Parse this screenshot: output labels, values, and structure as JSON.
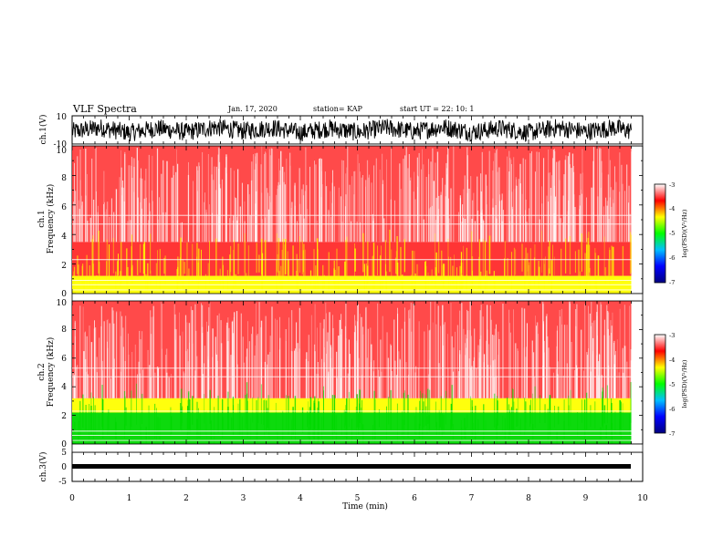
{
  "header": {
    "title": "VLF Spectra",
    "date": "Jan. 17, 2020",
    "station": "station= KAP",
    "start": "start UT =   22: 10: 1"
  },
  "colors": {
    "background": "#ffffff",
    "waveform": "#000000",
    "spectrogram_high": "#ff2a2a",
    "spectrogram_mid": "#ffff00",
    "spectrogram_low": "#00d800",
    "colorbar": [
      "#000080",
      "#0000ff",
      "#00c0ff",
      "#00ff00",
      "#ffff00",
      "#ff0000",
      "#ffffff"
    ]
  },
  "chart_data": [
    {
      "type": "line",
      "panel": "ch1-waveform",
      "ylabel": "ch.1(V)",
      "ylim": [
        -10,
        10
      ],
      "yticks": [
        "10",
        "-10"
      ],
      "xlim": [
        0,
        10
      ],
      "x": [
        0,
        0.5,
        1,
        1.5,
        2,
        2.5,
        3,
        3.5,
        4,
        4.5,
        5,
        5.5,
        6,
        6.5,
        7,
        7.5,
        8,
        8.5,
        9,
        9.5,
        9.8
      ],
      "series": [
        {
          "values": [
            -3,
            4,
            -5,
            3,
            -4,
            5,
            -2,
            4,
            -5,
            3,
            -4,
            4,
            -3,
            5,
            -4,
            3,
            -5,
            4,
            -3,
            4,
            -2
          ]
        }
      ],
      "envelope_v": [
        -8,
        8
      ]
    },
    {
      "type": "heatmap",
      "panel": "ch1-spectrogram",
      "ylabel_lines": [
        "ch.1",
        "Frequency (kHz)"
      ],
      "ylim": [
        0,
        10
      ],
      "yticks": [
        "0",
        "2",
        "4",
        "6",
        "8",
        "10"
      ],
      "xlim": [
        0,
        10
      ],
      "colorbar": {
        "label": "log(PSD)(V²/Hz)",
        "range": [
          -7,
          -3
        ],
        "ticks": [
          "-3",
          "-4",
          "-5",
          "-6",
          "-7"
        ]
      },
      "bands_khz": [
        {
          "from": 0,
          "to": 1.2,
          "level": "mid"
        },
        {
          "from": 1.2,
          "to": 3.5,
          "level": "mid-high"
        },
        {
          "from": 3.5,
          "to": 10,
          "level": "high"
        }
      ]
    },
    {
      "type": "heatmap",
      "panel": "ch2-spectrogram",
      "ylabel_lines": [
        "ch.2",
        "Frequency (kHz)"
      ],
      "ylim": [
        0,
        10
      ],
      "yticks": [
        "0",
        "2",
        "4",
        "6",
        "8",
        "10"
      ],
      "xlim": [
        0,
        10
      ],
      "colorbar": {
        "label": "log(PSD)(V²/Hz)",
        "range": [
          -7,
          -3
        ],
        "ticks": [
          "-3",
          "-4",
          "-5",
          "-6",
          "-7"
        ]
      },
      "bands_khz": [
        {
          "from": 0,
          "to": 2.2,
          "level": "low"
        },
        {
          "from": 2.2,
          "to": 3.2,
          "level": "mid"
        },
        {
          "from": 3.2,
          "to": 10,
          "level": "high"
        }
      ]
    },
    {
      "type": "line",
      "panel": "ch3-waveform",
      "ylabel": "ch.3(V)",
      "ylim": [
        -5,
        5
      ],
      "yticks": [
        "5",
        "0",
        "-5"
      ],
      "xlim": [
        0,
        10
      ],
      "xticks": [
        "0",
        "1",
        "2",
        "3",
        "4",
        "5",
        "6",
        "7",
        "8",
        "9",
        "10"
      ],
      "xlabel": "Time (min)",
      "envelope_v": [
        -1.2,
        -0.4
      ]
    }
  ]
}
